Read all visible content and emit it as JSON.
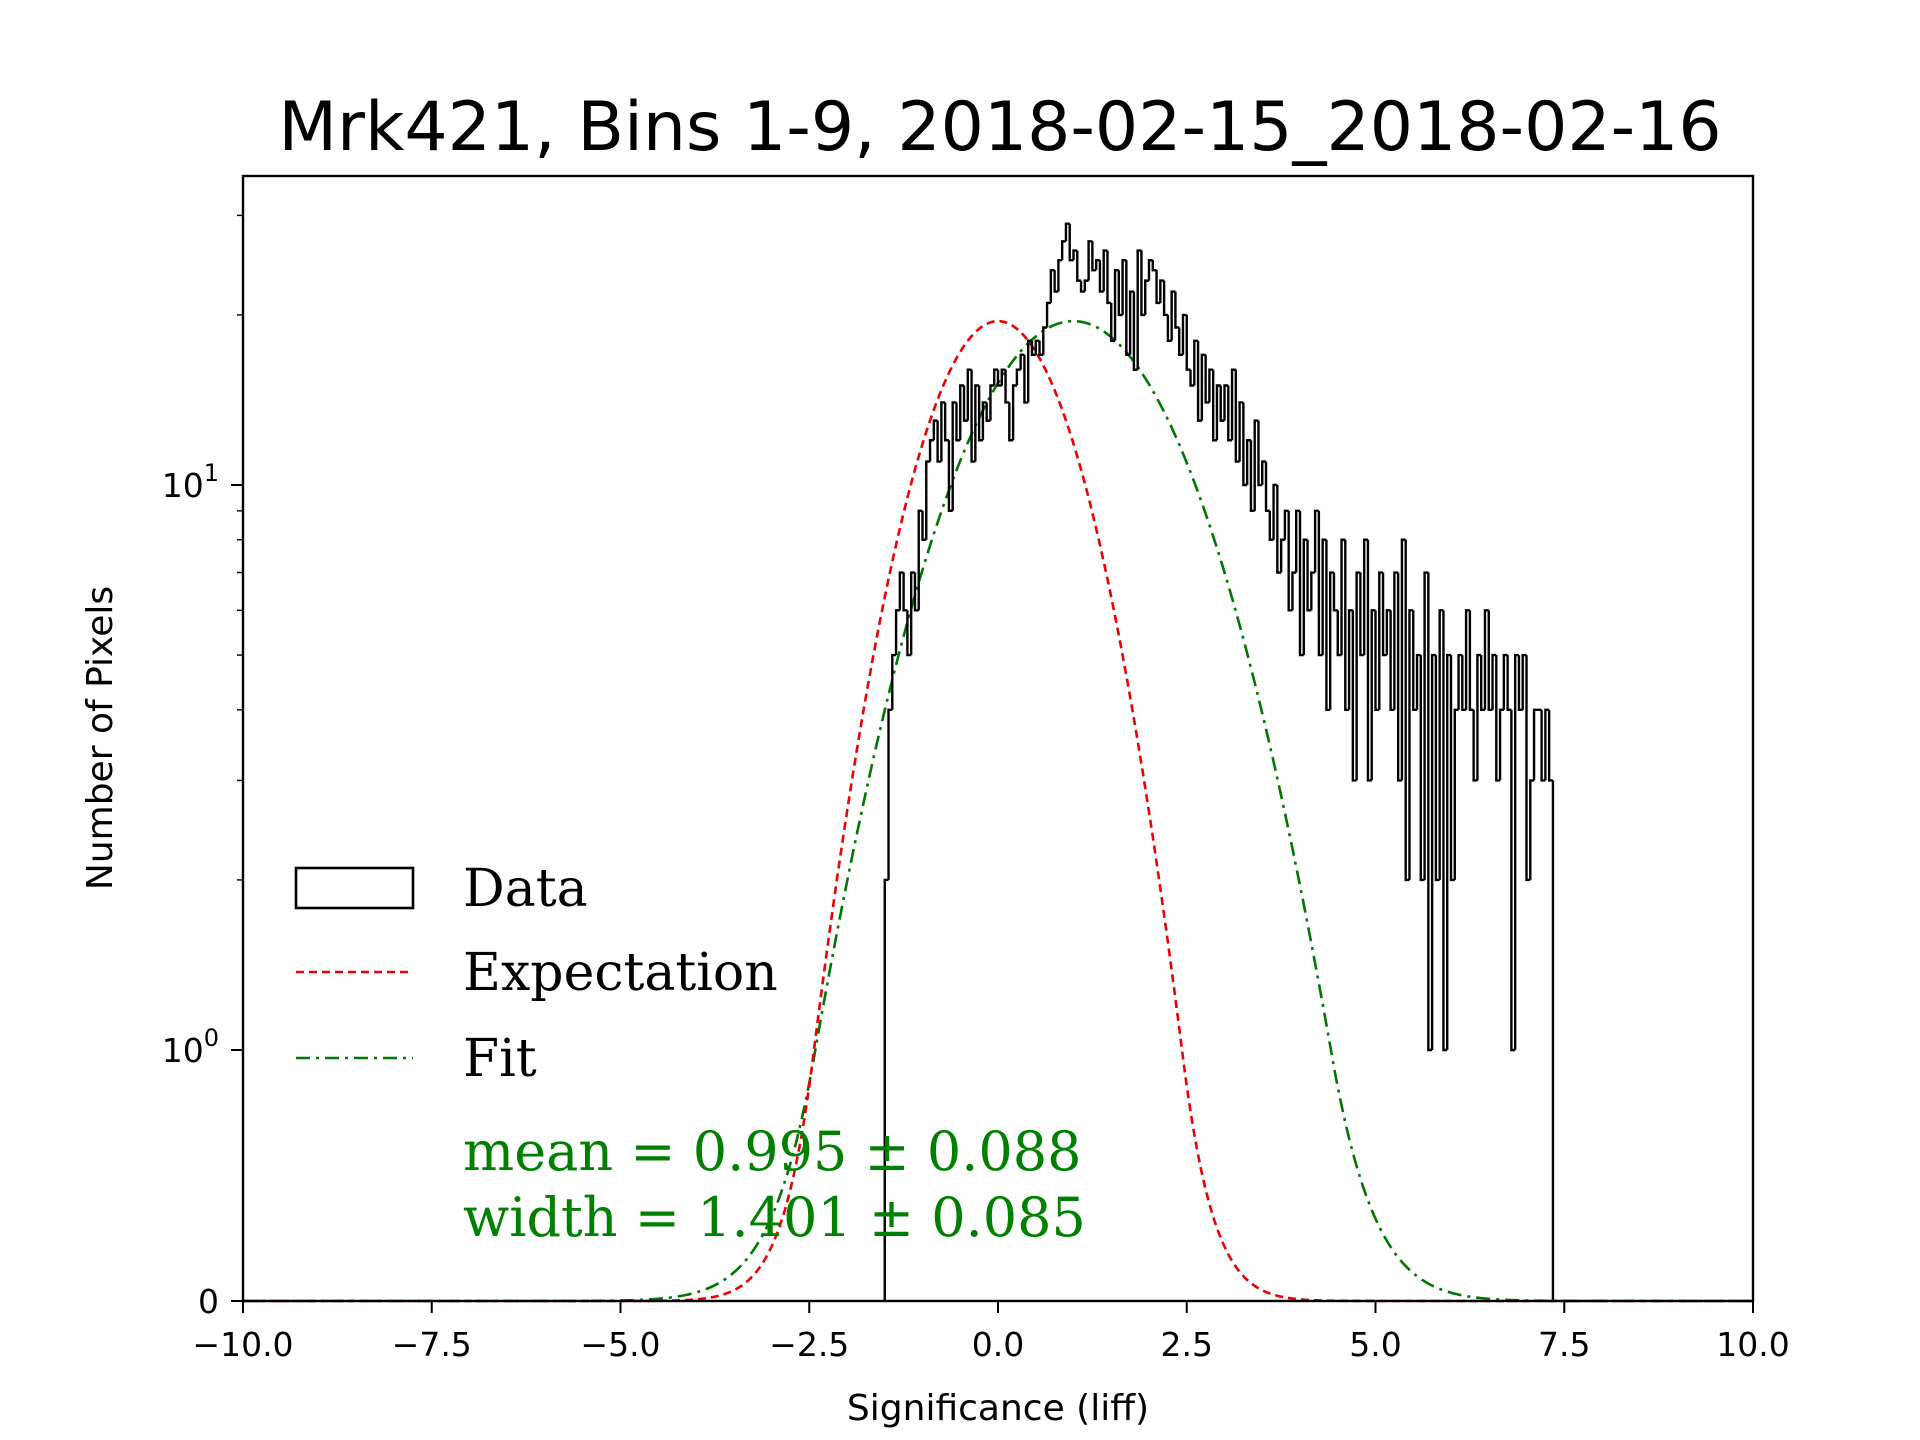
{
  "chart_data": {
    "type": "histogram",
    "title": "Mrk421, Bins 1-9, 2018-02-15_2018-02-16",
    "xlabel": "Significance (liff)",
    "ylabel": "Number of Pixels",
    "xlim": [
      -10,
      10
    ],
    "yscale": "symlog",
    "xticks": [
      "−10.0",
      "−7.5",
      "−5.0",
      "−2.5",
      "0.0",
      "2.5",
      "5.0",
      "7.5",
      "10.0"
    ],
    "xtick_values": [
      -10,
      -7.5,
      -5,
      -2.5,
      0,
      2.5,
      5,
      7.5,
      10
    ],
    "yticks": [
      {
        "value": 0,
        "base": "0",
        "exp": ""
      },
      {
        "value": 1,
        "base": "10",
        "exp": "0"
      },
      {
        "value": 10,
        "base": "10",
        "exp": "1"
      }
    ],
    "hist": {
      "bin_start": -1.5,
      "bin_width": 0.05,
      "counts": [
        2,
        4,
        5,
        6,
        7,
        6,
        5,
        7,
        6,
        9,
        8,
        11,
        12,
        13,
        11,
        14,
        12,
        9,
        14,
        12,
        15,
        13,
        16,
        11,
        15,
        12,
        14,
        13,
        15,
        16,
        15,
        16,
        14,
        12,
        15,
        16,
        17,
        14,
        18,
        17,
        18,
        17,
        19,
        21,
        24,
        22,
        25,
        27,
        29,
        25,
        26,
        23,
        22,
        23,
        27,
        24,
        25,
        22,
        26,
        21,
        18,
        24,
        20,
        25,
        17,
        22,
        16,
        26,
        20,
        23,
        25,
        24,
        21,
        23,
        20,
        18,
        22,
        19,
        17,
        20,
        16,
        15,
        18,
        13,
        17,
        14,
        16,
        12,
        15,
        13,
        15,
        12,
        16,
        11,
        14,
        10,
        12,
        9,
        13,
        10,
        11,
        9,
        8,
        10,
        7,
        8,
        9,
        6,
        7,
        9,
        5,
        8,
        6,
        7,
        9,
        5,
        8,
        4,
        7,
        6,
        5,
        8,
        4,
        6,
        3,
        7,
        5,
        8,
        3,
        6,
        4,
        7,
        5,
        6,
        4,
        7,
        3,
        8,
        2,
        6,
        4,
        5,
        2,
        7,
        1,
        5,
        2,
        6,
        1,
        5,
        2,
        4,
        5,
        4,
        6,
        4,
        3,
        5,
        4,
        6,
        4,
        5,
        3,
        4,
        5,
        4,
        1,
        5,
        4,
        5,
        2,
        3,
        4,
        4,
        3,
        4,
        3
      ]
    },
    "expectation": {
      "mean": 0.0,
      "width": 1.0,
      "amplitude": 19.5
    },
    "fit": {
      "mean": 0.995,
      "width": 1.401,
      "amplitude": 19.5
    },
    "legend": {
      "position": "lower-left",
      "entries": [
        {
          "label": "Data",
          "style": "box",
          "color": "#000000"
        },
        {
          "label": "Expectation",
          "style": "dashed",
          "color": "#ee0000"
        },
        {
          "label": "Fit",
          "style": "dashdot",
          "color": "#007700"
        }
      ]
    },
    "annotations": {
      "mean_text": "mean = 0.995 ± 0.088",
      "width_text": "width = 1.401 ± 0.085",
      "color": "#008000"
    }
  }
}
